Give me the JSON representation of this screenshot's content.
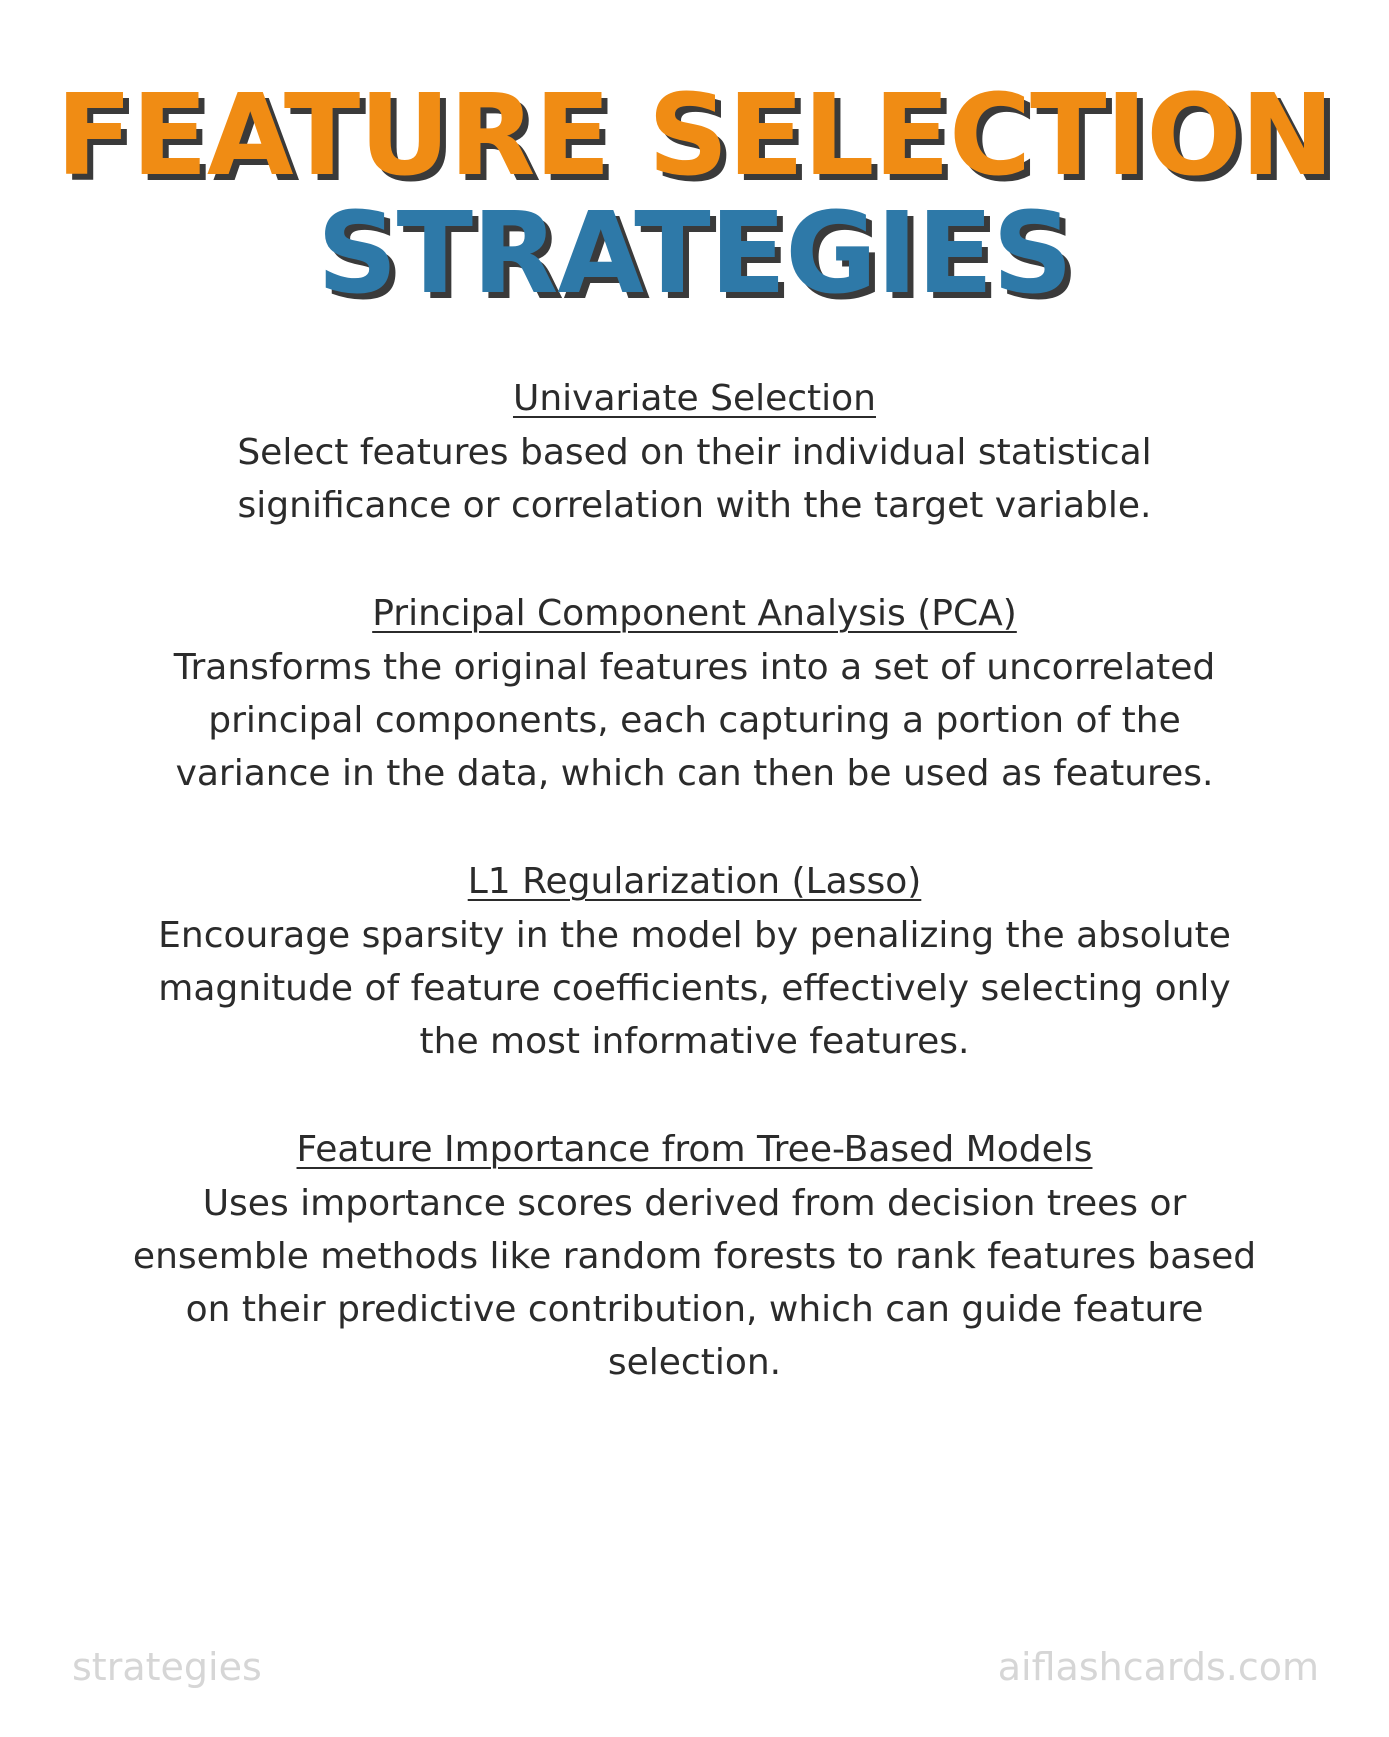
{
  "title": {
    "line1": "FEATURE SELECTION",
    "line2": "STRATEGIES",
    "line1_color": "#f08c14",
    "line2_color": "#2e79a8"
  },
  "sections": [
    {
      "heading": "Univariate Selection",
      "body": "Select features based on their individual statistical significance or correlation with the target variable."
    },
    {
      "heading": "Principal Component Analysis (PCA)",
      "body": "Transforms the original features into a set of uncorrelated principal components, each capturing a portion of the variance in the data, which can then be used as features."
    },
    {
      "heading": "L1 Regularization (Lasso)",
      "body": "Encourage sparsity in the model by penalizing the absolute magnitude of feature coefficients, effectively selecting only the most informative features."
    },
    {
      "heading": "Feature Importance from Tree-Based Models",
      "body": "Uses importance scores derived from decision trees or ensemble methods like random forests to rank features based on their predictive contribution, which can guide feature selection."
    }
  ],
  "footer": {
    "left": "strategies",
    "right": "aiflashcards.com"
  }
}
